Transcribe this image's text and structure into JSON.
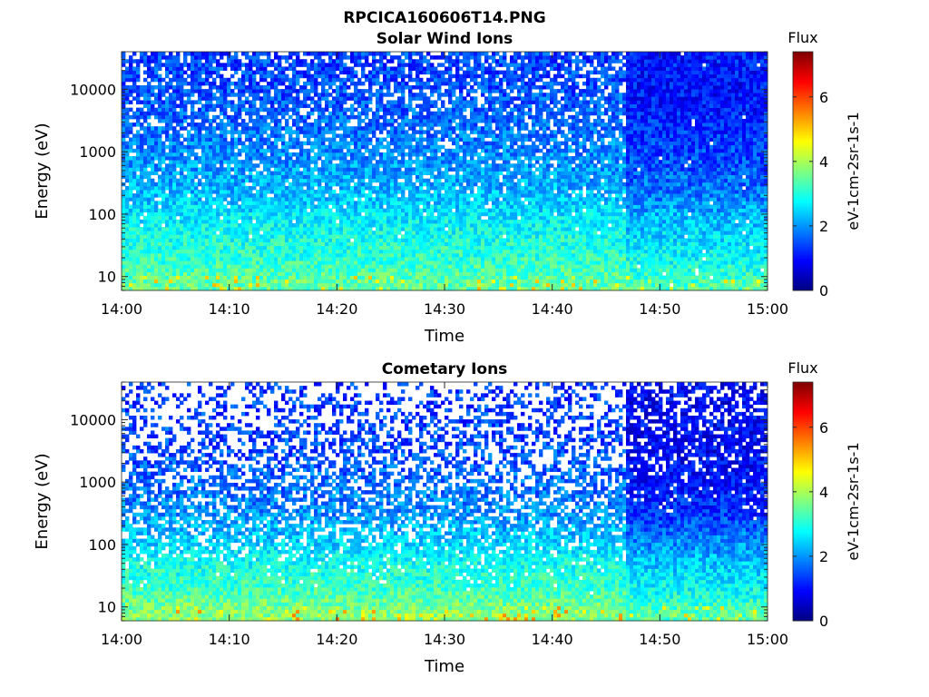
{
  "figure": {
    "title": "RPCICA160606T14.PNG"
  },
  "chart_data": [
    {
      "type": "heatmap",
      "title": "Solar Wind Ions",
      "xlabel": "Time",
      "ylabel": "Energy (eV)",
      "x_ticks": [
        "14:00",
        "14:10",
        "14:20",
        "14:30",
        "14:40",
        "14:50",
        "15:00"
      ],
      "x_range": [
        "14:00",
        "15:00"
      ],
      "y_scale": "log",
      "y_ticks": [
        10,
        100,
        1000,
        10000
      ],
      "y_tick_labels": [
        "10",
        "100",
        "1000",
        "10000"
      ],
      "y_range": [
        6,
        40000
      ],
      "colorbar": {
        "title": "Flux",
        "label": "eV-1cm-2sr-1s-1",
        "ticks": [
          0,
          2,
          4,
          6
        ],
        "tick_labels": [
          "0",
          "2",
          "4",
          "6"
        ],
        "range": [
          0,
          7.4
        ],
        "colormap": "jet"
      },
      "regime_change_time": "14:47",
      "flux_profile": {
        "energy_eV": [
          8,
          20,
          50,
          100,
          300,
          1000,
          3000,
          10000,
          30000
        ],
        "before_change": [
          3.5,
          3.1,
          2.9,
          2.6,
          2.2,
          1.9,
          1.7,
          1.5,
          1.4
        ],
        "after_change": [
          3.3,
          2.8,
          2.5,
          2.2,
          1.7,
          1.4,
          1.2,
          1.0,
          1.1
        ]
      },
      "grid": false
    },
    {
      "type": "heatmap",
      "title": "Cometary Ions",
      "xlabel": "Time",
      "ylabel": "Energy (eV)",
      "x_ticks": [
        "14:00",
        "14:10",
        "14:20",
        "14:30",
        "14:40",
        "14:50",
        "15:00"
      ],
      "x_range": [
        "14:00",
        "15:00"
      ],
      "y_scale": "log",
      "y_ticks": [
        10,
        100,
        1000,
        10000
      ],
      "y_tick_labels": [
        "10",
        "100",
        "1000",
        "10000"
      ],
      "y_range": [
        6,
        40000
      ],
      "colorbar": {
        "title": "Flux",
        "label": "eV-1cm-2sr-1s-1",
        "ticks": [
          0,
          2,
          4,
          6
        ],
        "tick_labels": [
          "0",
          "2",
          "4",
          "6"
        ],
        "range": [
          0,
          7.4
        ],
        "colormap": "jet"
      },
      "regime_change_time": "14:47",
      "flux_profile": {
        "energy_eV": [
          8,
          20,
          50,
          100,
          300,
          1000,
          3000,
          10000,
          30000
        ],
        "before_change": [
          3.8,
          3.2,
          2.9,
          2.5,
          2.0,
          1.7,
          1.5,
          1.4,
          1.3
        ],
        "after_change": [
          3.4,
          2.8,
          2.4,
          2.0,
          1.3,
          1.0,
          0.9,
          0.9,
          0.9
        ]
      },
      "grid": false
    }
  ]
}
